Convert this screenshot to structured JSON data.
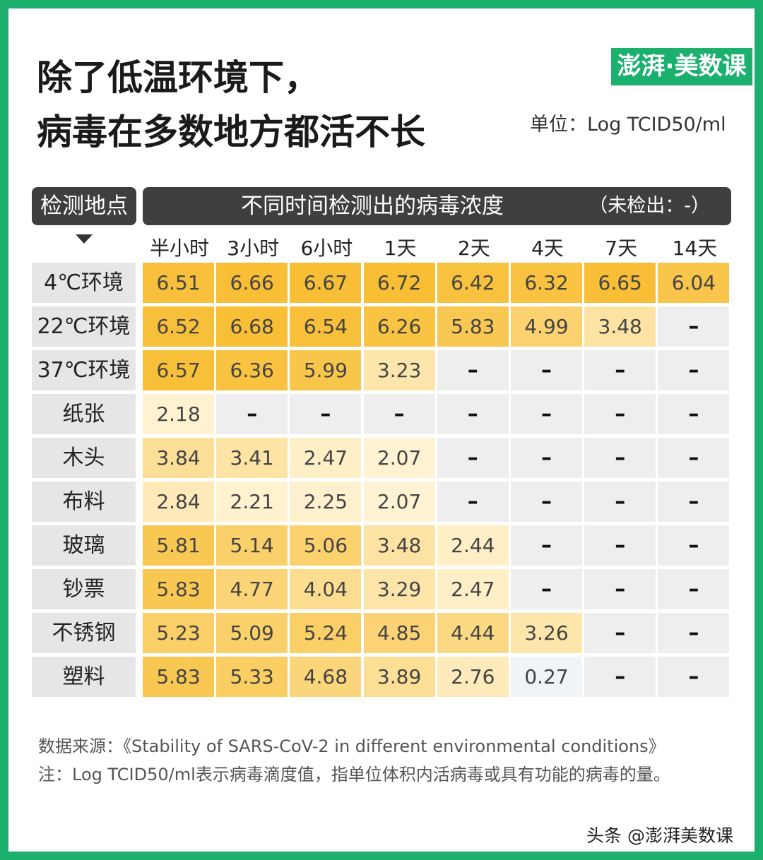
{
  "header": {
    "title": [
      "除了低温环境下，",
      "病毒在多数地方都活不长"
    ],
    "logo": "澎湃·美数课",
    "unit": "单位：Log TCID50/ml"
  },
  "table": {
    "corner": "检测地点",
    "group_header": "不同时间检测出的病毒浓度",
    "note": "（未检出：-）",
    "columns": [
      "半小时",
      "3小时",
      "6小时",
      "1天",
      "2天",
      "4天",
      "7天",
      "14天"
    ],
    "rows": [
      {
        "label": "4℃环境",
        "values": [
          6.51,
          6.66,
          6.67,
          6.72,
          6.42,
          6.32,
          6.65,
          6.04
        ]
      },
      {
        "label": "22℃环境",
        "values": [
          6.52,
          6.68,
          6.54,
          6.26,
          5.83,
          4.99,
          3.48,
          "–"
        ]
      },
      {
        "label": "37℃环境",
        "values": [
          6.57,
          6.36,
          5.99,
          3.23,
          "–",
          "–",
          "–",
          "–"
        ]
      },
      {
        "label": "纸张",
        "values": [
          2.18,
          "–",
          "–",
          "–",
          "–",
          "–",
          "–",
          "–"
        ]
      },
      {
        "label": "木头",
        "values": [
          3.84,
          3.41,
          2.47,
          2.07,
          "–",
          "–",
          "–",
          "–"
        ]
      },
      {
        "label": "布料",
        "values": [
          2.84,
          2.21,
          2.25,
          2.07,
          "–",
          "–",
          "–",
          "–"
        ]
      },
      {
        "label": "玻璃",
        "values": [
          5.81,
          5.14,
          5.06,
          3.48,
          2.44,
          "–",
          "–",
          "–"
        ]
      },
      {
        "label": "钞票",
        "values": [
          5.83,
          4.77,
          4.04,
          3.29,
          2.47,
          "–",
          "–",
          "–"
        ]
      },
      {
        "label": "不锈钢",
        "values": [
          5.23,
          5.09,
          5.24,
          4.85,
          4.44,
          3.26,
          "–",
          "–"
        ]
      },
      {
        "label": "塑料",
        "values": [
          5.83,
          5.33,
          4.68,
          3.89,
          2.76,
          0.27,
          "–",
          "–"
        ]
      }
    ]
  },
  "footer": {
    "source": "数据来源：《Stability of SARS-CoV-2 in different environmental conditions》",
    "note": "注：Log TCID50/ml表示病毒滴度值，指单位体积内活病毒或具有功能的病毒的量。",
    "watermark": "头条 @澎湃美数课"
  }
}
